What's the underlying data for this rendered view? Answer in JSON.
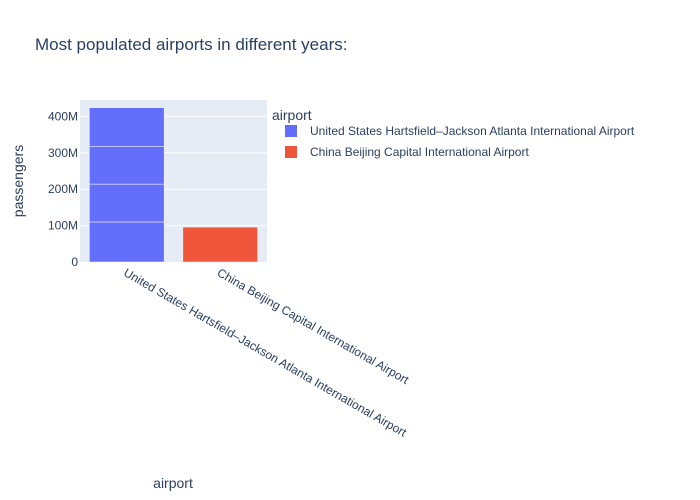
{
  "chart_data": {
    "type": "bar",
    "title": "Most populated airports in different years:",
    "xlabel": "airport",
    "ylabel": "passengers",
    "categories": [
      "United States Hartsfield–Jackson Atlanta International Airport",
      "China Beijing Capital International Airport"
    ],
    "segments": [
      [
        {
          "value": 110000000
        },
        {
          "value": 104000000
        },
        {
          "value": 103000000
        },
        {
          "value": 107000000
        }
      ],
      [
        {
          "value": 96000000
        }
      ]
    ],
    "values": [
      424000000,
      96000000
    ],
    "ylim": [
      0,
      445000000
    ],
    "yticks": [
      {
        "value": 0,
        "label": "0"
      },
      {
        "value": 100000000,
        "label": "100M"
      },
      {
        "value": 200000000,
        "label": "200M"
      },
      {
        "value": 300000000,
        "label": "300M"
      },
      {
        "value": 400000000,
        "label": "400M"
      }
    ],
    "legend": {
      "title": "airport",
      "placement": "right",
      "items": [
        {
          "label": "United States Hartsfield–Jackson Atlanta International Airport",
          "color": "#636efa"
        },
        {
          "label": "China Beijing Capital International Airport",
          "color": "#ef553b"
        }
      ]
    },
    "colors": {
      "plot_background": "#e5ecf6",
      "grid": "#ffffff",
      "text": "#2a3f5f",
      "series": [
        "#636efa",
        "#ef553b"
      ]
    },
    "grid": true
  }
}
